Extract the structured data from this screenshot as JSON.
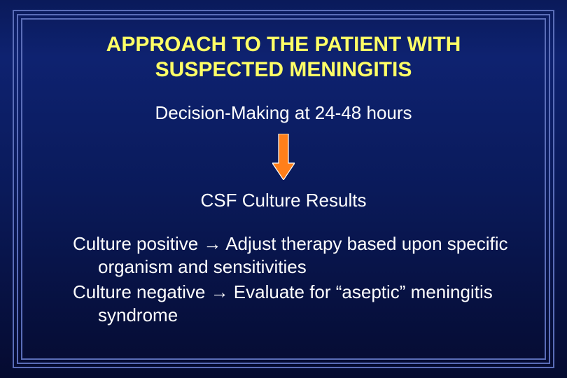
{
  "colors": {
    "frame": "#5a6db8",
    "title": "#ffff66",
    "body_text": "#ffffff",
    "arrow_fill": "#ff7f1a",
    "arrow_stroke": "#ffffff",
    "bg_gradient_top": "#0e2270",
    "bg_gradient_bottom": "#050b30"
  },
  "typography": {
    "title_fontsize": 30,
    "body_fontsize": 26,
    "title_weight": "bold",
    "body_weight": "normal",
    "family": "Arial"
  },
  "arrow": {
    "width": 32,
    "height": 66,
    "shaft_width": 14,
    "head_width": 32,
    "head_height": 24,
    "stroke_width": 1.2
  },
  "title_line1": "APPROACH TO THE PATIENT WITH",
  "title_line2": "SUSPECTED MENINGITIS",
  "subheading": "Decision-Making at 24-48 hours",
  "subheading2": "CSF Culture Results",
  "bullets": [
    {
      "lead": "Culture positive",
      "arrow": "→",
      "rest": "Adjust therapy based upon specific organism and sensitivities"
    },
    {
      "lead": "Culture negative",
      "arrow": "→",
      "rest": "Evaluate for “aseptic” meningitis syndrome"
    }
  ]
}
